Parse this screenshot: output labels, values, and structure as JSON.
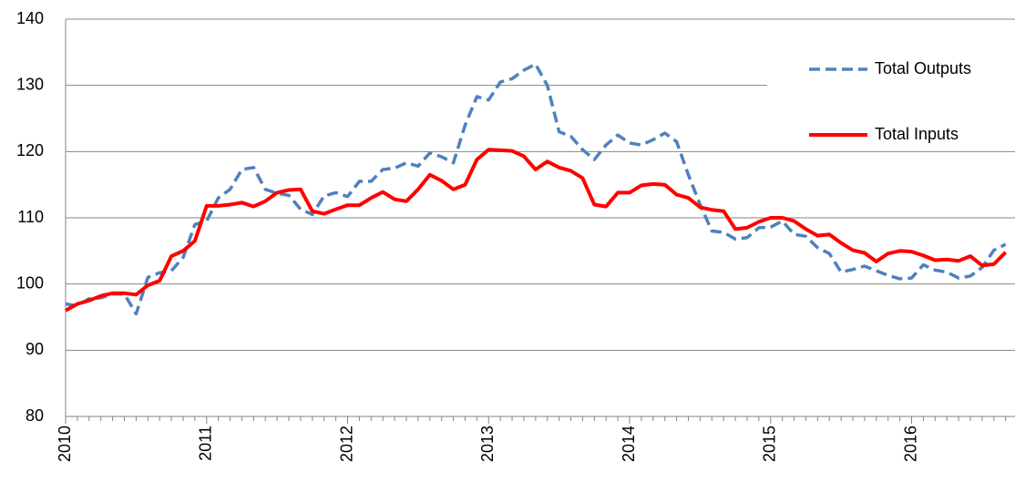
{
  "chart_data": {
    "type": "line",
    "categories": [
      "2010",
      null,
      null,
      null,
      null,
      null,
      null,
      null,
      null,
      null,
      null,
      null,
      "2011",
      null,
      null,
      null,
      null,
      null,
      null,
      null,
      null,
      null,
      null,
      null,
      "2012",
      null,
      null,
      null,
      null,
      null,
      null,
      null,
      null,
      null,
      null,
      null,
      "2013",
      null,
      null,
      null,
      null,
      null,
      null,
      null,
      null,
      null,
      null,
      null,
      "2014",
      null,
      null,
      null,
      null,
      null,
      null,
      null,
      null,
      null,
      null,
      null,
      "2015",
      null,
      null,
      null,
      null,
      null,
      null,
      null,
      null,
      null,
      null,
      null,
      "2016",
      null,
      null,
      null,
      null,
      null,
      null,
      null,
      null
    ],
    "series": [
      {
        "name": "Total Outputs",
        "color": "#4f81bd",
        "dash": true,
        "values": [
          97,
          96.7,
          97.8,
          97.9,
          98.5,
          98.5,
          95.5,
          101,
          101.7,
          102,
          104,
          109,
          109.5,
          113,
          114.3,
          117.3,
          117.6,
          114.3,
          113.7,
          113.4,
          111.3,
          110.5,
          113.3,
          113.8,
          113.2,
          115.5,
          115.5,
          117.3,
          117.5,
          118.3,
          117.8,
          119.8,
          119.2,
          118.3,
          124,
          128.3,
          127.8,
          130.5,
          131,
          132.3,
          133.2,
          130,
          123,
          122.3,
          120.3,
          118.8,
          121,
          122.5,
          121.3,
          121,
          121.8,
          122.8,
          121.5,
          116.5,
          112,
          108,
          107.8,
          106.8,
          107,
          108.5,
          108.6,
          109.5,
          107.5,
          107.2,
          105.5,
          104.6,
          101.8,
          102.2,
          102.7,
          102,
          101.3,
          100.8,
          100.9,
          102.9,
          102.1,
          101.8,
          100.9,
          101.2,
          102.5,
          105.1,
          106
        ]
      },
      {
        "name": "Total Inputs",
        "color": "#ff0000",
        "dash": false,
        "values": [
          96,
          97,
          97.5,
          98.2,
          98.6,
          98.6,
          98.4,
          99.8,
          100.5,
          104.2,
          105,
          106.5,
          111.8,
          111.8,
          112,
          112.3,
          111.7,
          112.5,
          113.8,
          114.2,
          114.3,
          111,
          110.6,
          111.3,
          111.9,
          111.9,
          113,
          113.9,
          112.8,
          112.5,
          114.3,
          116.5,
          115.6,
          114.3,
          115,
          118.8,
          120.3,
          120.2,
          120.1,
          119.3,
          117.3,
          118.5,
          117.6,
          117.1,
          116,
          112,
          111.7,
          113.8,
          113.8,
          114.9,
          115.1,
          115,
          113.5,
          113,
          111.6,
          111.2,
          111,
          108.3,
          108.5,
          109.4,
          110,
          110,
          109.5,
          108.3,
          107.3,
          107.5,
          106.2,
          105.1,
          104.7,
          103.4,
          104.6,
          105,
          104.9,
          104.3,
          103.6,
          103.7,
          103.5,
          104.2,
          102.8,
          103,
          104.8
        ]
      }
    ],
    "ylim": [
      80,
      140
    ],
    "yticks": [
      80,
      90,
      100,
      110,
      120,
      130,
      140
    ],
    "grid": true,
    "legend": "right"
  }
}
